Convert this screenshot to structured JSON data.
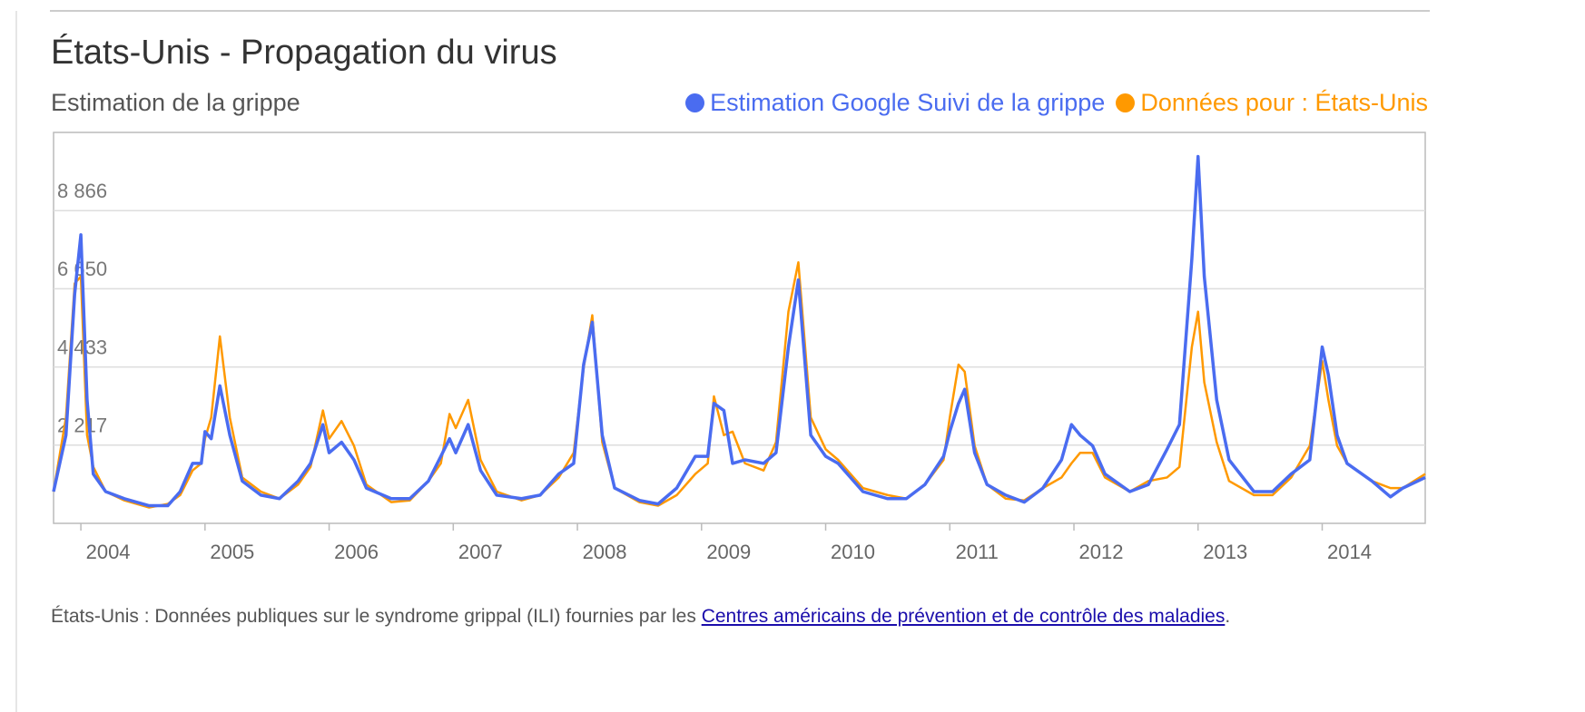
{
  "chart_data": {
    "type": "line",
    "title": "États-Unis - Propagation du virus",
    "subtitle": "Estimation de la grippe",
    "x": [
      2003.78,
      2003.88,
      2003.95,
      2004.0,
      2004.05,
      2004.1,
      2004.2,
      2004.35,
      2004.55,
      2004.7,
      2004.8,
      2004.9,
      2004.97,
      2005.0,
      2005.05,
      2005.12,
      2005.2,
      2005.3,
      2005.45,
      2005.6,
      2005.75,
      2005.85,
      2005.95,
      2006.0,
      2006.1,
      2006.2,
      2006.3,
      2006.5,
      2006.65,
      2006.8,
      2006.9,
      2006.97,
      2007.02,
      2007.12,
      2007.22,
      2007.35,
      2007.55,
      2007.7,
      2007.85,
      2007.97,
      2008.05,
      2008.12,
      2008.2,
      2008.3,
      2008.5,
      2008.65,
      2008.8,
      2008.95,
      2009.05,
      2009.1,
      2009.18,
      2009.25,
      2009.35,
      2009.5,
      2009.6,
      2009.7,
      2009.78,
      2009.88,
      2010.0,
      2010.1,
      2010.3,
      2010.5,
      2010.65,
      2010.8,
      2010.95,
      2011.0,
      2011.07,
      2011.12,
      2011.2,
      2011.3,
      2011.45,
      2011.6,
      2011.75,
      2011.9,
      2011.98,
      2012.05,
      2012.15,
      2012.25,
      2012.45,
      2012.6,
      2012.75,
      2012.85,
      2012.95,
      2013.0,
      2013.05,
      2013.15,
      2013.25,
      2013.45,
      2013.6,
      2013.75,
      2013.9,
      2014.0,
      2014.05,
      2014.12,
      2014.2,
      2014.4,
      2014.55,
      2014.65,
      2014.83
    ],
    "series": [
      {
        "name": "Estimation Google Suivi de la grippe",
        "color": "#4a6cf0",
        "values": [
          900,
          2500,
          6500,
          8180,
          3500,
          1400,
          900,
          700,
          500,
          500,
          900,
          1700,
          1700,
          2600,
          2400,
          3900,
          2500,
          1200,
          800,
          700,
          1200,
          1700,
          2800,
          2000,
          2300,
          1800,
          1000,
          700,
          700,
          1200,
          1900,
          2400,
          2000,
          2800,
          1500,
          800,
          700,
          800,
          1400,
          1700,
          4500,
          5700,
          2500,
          1000,
          650,
          550,
          1000,
          1900,
          1900,
          3400,
          3200,
          1700,
          1800,
          1700,
          2000,
          5000,
          6900,
          2500,
          1900,
          1700,
          900,
          700,
          700,
          1100,
          1900,
          2600,
          3400,
          3800,
          2000,
          1100,
          800,
          600,
          1000,
          1800,
          2800,
          2500,
          2200,
          1400,
          900,
          1100,
          2100,
          2800,
          7500,
          10400,
          7000,
          3500,
          1800,
          900,
          900,
          1400,
          1800,
          5000,
          4200,
          2500,
          1700,
          1200,
          750,
          1000,
          1300
        ]
      },
      {
        "name": "Données pour : États-Unis",
        "color": "#ff9900",
        "values": [
          900,
          3000,
          6800,
          7000,
          2500,
          1600,
          900,
          650,
          450,
          550,
          800,
          1500,
          1700,
          2400,
          3000,
          5300,
          3000,
          1300,
          900,
          700,
          1100,
          1600,
          3200,
          2400,
          2900,
          2200,
          1100,
          600,
          650,
          1200,
          1700,
          3100,
          2700,
          3500,
          1800,
          900,
          650,
          800,
          1300,
          2000,
          4400,
          5900,
          2300,
          1000,
          600,
          500,
          800,
          1400,
          1700,
          3600,
          2500,
          2600,
          1700,
          1500,
          2300,
          6000,
          7400,
          3000,
          2100,
          1800,
          1000,
          800,
          700,
          1100,
          1800,
          3000,
          4500,
          4300,
          2200,
          1100,
          700,
          650,
          1000,
          1300,
          1700,
          2000,
          2000,
          1300,
          900,
          1200,
          1300,
          1600,
          5000,
          6000,
          4000,
          2300,
          1200,
          800,
          800,
          1300,
          2200,
          4600,
          3500,
          2200,
          1700,
          1200,
          1000,
          1000,
          1400
        ]
      }
    ],
    "xlim": [
      2003.78,
      2014.83
    ],
    "xticks": [
      2004,
      2005,
      2006,
      2007,
      2008,
      2009,
      2010,
      2011,
      2012,
      2013,
      2014
    ],
    "ylim": [
      0,
      11083
    ],
    "yticks": [
      {
        "value": 2217,
        "label": "2 217"
      },
      {
        "value": 4433,
        "label": "4 433"
      },
      {
        "value": 6650,
        "label": "6 650"
      },
      {
        "value": 8866,
        "label": "8 866"
      }
    ],
    "grid": true
  },
  "footer": {
    "text": "États-Unis : Données publiques sur le syndrome grippal (ILI) fournies par les ",
    "link": "Centres américains de prévention et de contrôle des maladies",
    "end": "."
  }
}
